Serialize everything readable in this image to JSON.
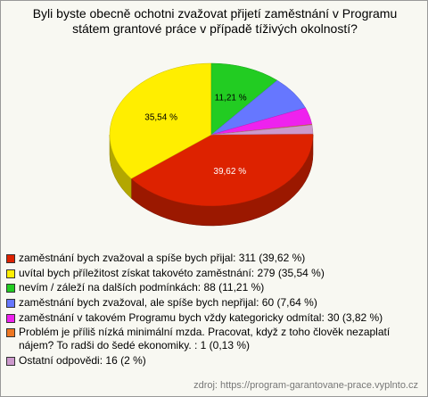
{
  "chart_data": {
    "type": "pie",
    "title": "Byli byste obecně ochotni zvažovat přijetí zaměstnání v Programu státem grantové práce v případě tíživých okolností?",
    "categories": [
      "zaměstnání bych zvažoval a spíše bych přijal: 311 (39,62 %)",
      "uvítal bych příležitost získat takovéto zaměstnání: 279 (35,54 %)",
      "nevím / záleží na dalších podmínkách: 88 (11,21 %)",
      "zaměstnání bych zvažoval, ale spíše bych nepřijal: 60 (7,64 %)",
      "zaměstnání v takovém Programu bych vždy kategoricky odmítal: 30 (3,82 %)",
      "Problém je příliš nízká minimální mzda. Pracovat, když z toho člověk nezaplatí nájem? To radši do šedé ekonomiky. : 1 (0,13 %)",
      "Ostatní odpovědi: 16 (2 %)"
    ],
    "values": [
      39.62,
      35.54,
      11.21,
      7.64,
      3.82,
      0.13,
      2
    ],
    "value_labels": [
      "39,62 %",
      "35,54 %",
      "11,21 %",
      null,
      null,
      null,
      null
    ],
    "colors": [
      "#dd2200",
      "#ffee00",
      "#22cc22",
      "#6677ff",
      "#ee22ee",
      "#ee7722",
      "#cc99cc"
    ],
    "source": "zdroj: https://program-garantovane-prace.vyplnto.cz"
  }
}
